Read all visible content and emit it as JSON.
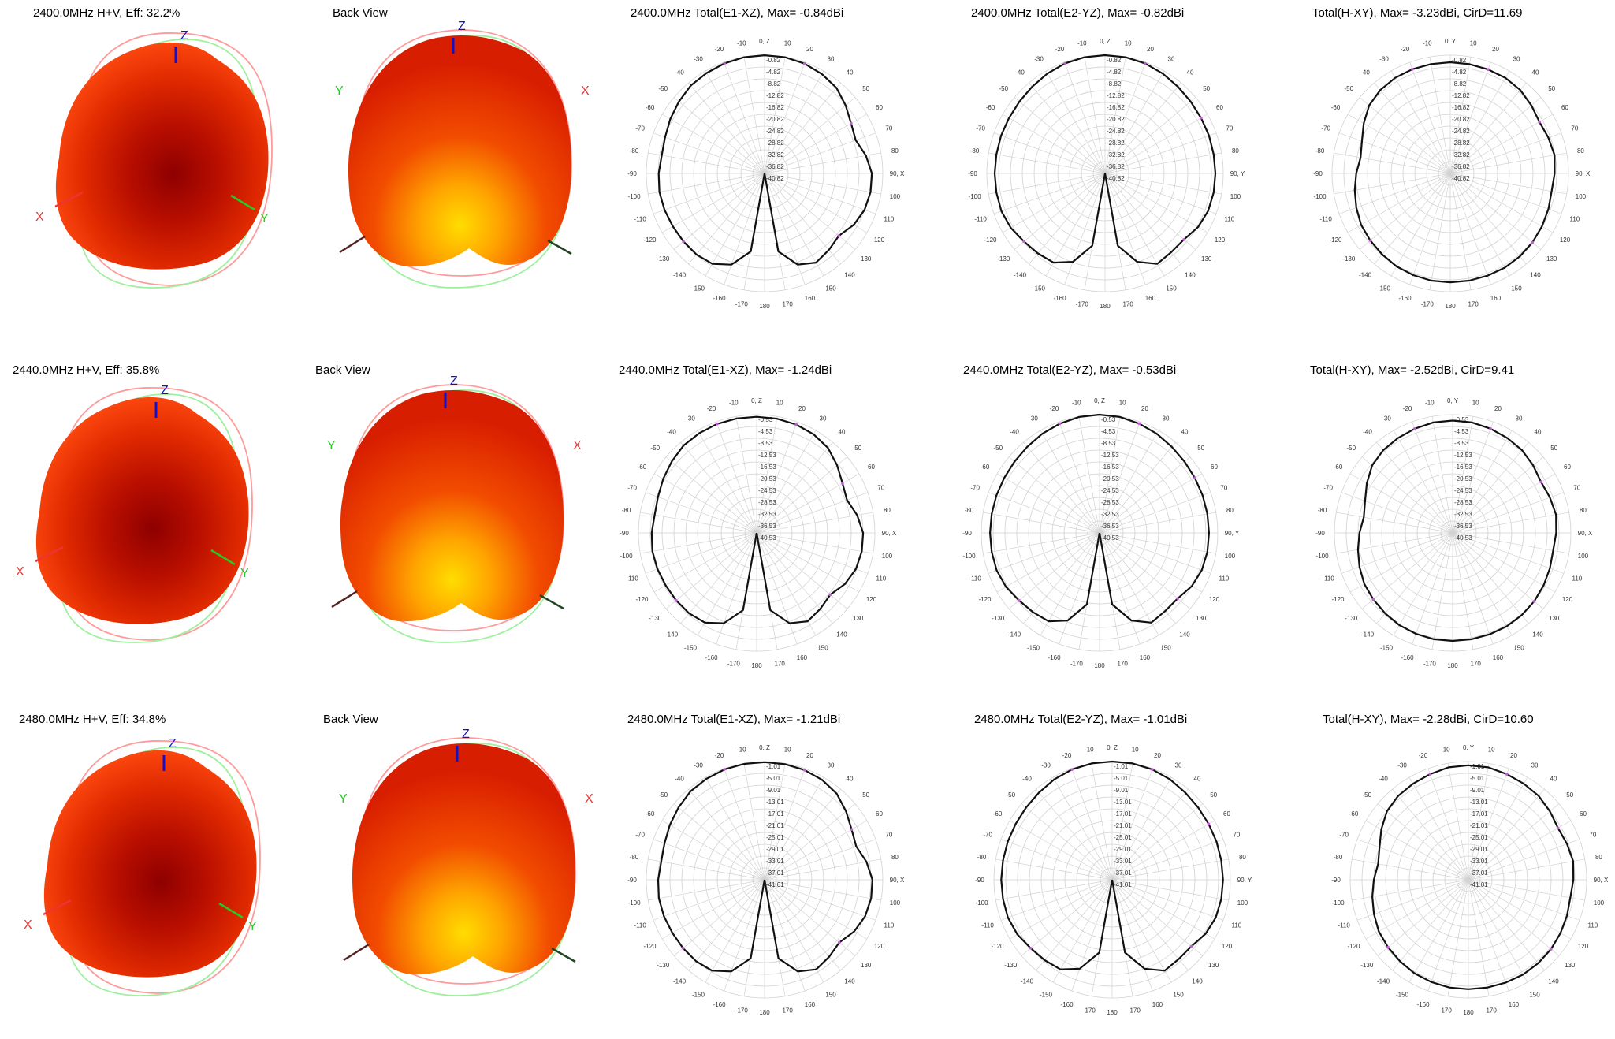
{
  "rows": [
    {
      "view3d": {
        "title": "2400.0MHz H+V, Eff: 32.2%",
        "back_label": "Back View",
        "axis_labels": {
          "x": "X",
          "y": "Y",
          "z": "Z"
        }
      },
      "polars": [
        {
          "title": "2400.0MHz Total(E1-XZ), Max= -0.84dBi",
          "axis0": "0, Z",
          "axis90": "90, X",
          "rings": [
            "-0.82",
            "-4.82",
            "-8.82",
            "-12.82",
            "-16.82",
            "-20.82",
            "-24.82",
            "-28.82",
            "-32.82",
            "-36.82",
            "-40.82"
          ]
        },
        {
          "title": "2400.0MHz Total(E2-YZ), Max= -0.82dBi",
          "axis0": "0, Z",
          "axis90": "90, Y",
          "rings": [
            "-0.82",
            "-4.82",
            "-8.82",
            "-12.82",
            "-16.82",
            "-20.82",
            "-24.82",
            "-28.82",
            "-32.82",
            "-36.82",
            "-40.82"
          ]
        },
        {
          "title": "Total(H-XY), Max= -3.23dBi, CirD=11.69",
          "axis0": "0, Y",
          "axis90": "90, X",
          "rings": [
            "-0.82",
            "-4.82",
            "-8.82",
            "-12.82",
            "-16.82",
            "-20.82",
            "-24.82",
            "-28.82",
            "-32.82",
            "-36.82",
            "-40.82"
          ]
        }
      ]
    },
    {
      "view3d": {
        "title": "2440.0MHz H+V, Eff: 35.8%",
        "back_label": "Back View",
        "axis_labels": {
          "x": "X",
          "y": "Y",
          "z": "Z"
        }
      },
      "polars": [
        {
          "title": "2440.0MHz Total(E1-XZ), Max= -1.24dBi",
          "axis0": "0, Z",
          "axis90": "90, X",
          "rings": [
            "-0.53",
            "-4.53",
            "-8.53",
            "-12.53",
            "-16.53",
            "-20.53",
            "-24.53",
            "-28.53",
            "-32.53",
            "-36.53",
            "-40.53"
          ]
        },
        {
          "title": "2440.0MHz Total(E2-YZ), Max= -0.53dBi",
          "axis0": "0, Z",
          "axis90": "90, Y",
          "rings": [
            "-0.53",
            "-4.53",
            "-8.53",
            "-12.53",
            "-16.53",
            "-20.53",
            "-24.53",
            "-28.53",
            "-32.53",
            "-36.53",
            "-40.53"
          ]
        },
        {
          "title": "Total(H-XY), Max= -2.52dBi, CirD=9.41",
          "axis0": "0, Y",
          "axis90": "90, X",
          "rings": [
            "-0.53",
            "-4.53",
            "-8.53",
            "-12.53",
            "-16.53",
            "-20.53",
            "-24.53",
            "-28.53",
            "-32.53",
            "-36.53",
            "-40.53"
          ]
        }
      ]
    },
    {
      "view3d": {
        "title": "2480.0MHz H+V, Eff: 34.8%",
        "back_label": "Back View",
        "axis_labels": {
          "x": "X",
          "y": "Y",
          "z": "Z"
        }
      },
      "polars": [
        {
          "title": "2480.0MHz Total(E1-XZ), Max= -1.21dBi",
          "axis0": "0, Z",
          "axis90": "90, X",
          "rings": [
            "-1.01",
            "-5.01",
            "-9.01",
            "-13.01",
            "-17.01",
            "-21.01",
            "-25.01",
            "-29.01",
            "-33.01",
            "-37.01",
            "-41.01"
          ]
        },
        {
          "title": "2480.0MHz Total(E2-YZ), Max= -1.01dBi",
          "axis0": "0, Z",
          "axis90": "90, Y",
          "rings": [
            "-1.01",
            "-5.01",
            "-9.01",
            "-13.01",
            "-17.01",
            "-21.01",
            "-25.01",
            "-29.01",
            "-33.01",
            "-37.01",
            "-41.01"
          ]
        },
        {
          "title": "Total(H-XY), Max= -2.28dBi, CirD=10.60",
          "axis0": "0, Y",
          "axis90": "90, X",
          "rings": [
            "-1.01",
            "-5.01",
            "-9.01",
            "-13.01",
            "-17.01",
            "-21.01",
            "-25.01",
            "-29.01",
            "-33.01",
            "-37.01",
            "-41.01"
          ]
        }
      ]
    }
  ],
  "colors": {
    "pattern_line": "#111111",
    "grid": "#d2d2d2",
    "marker": "#c45ad8",
    "heat_dark": "#8e0000",
    "heat_mid": "#e02a00",
    "heat_light": "#ffdd00",
    "z_axis": "#1111cc",
    "x_axis": "#ee3333",
    "y_axis": "#22cc22"
  },
  "chart_data": {
    "type": "polar",
    "angles_deg": [
      -180,
      -170,
      -160,
      -150,
      -140,
      -130,
      -120,
      -110,
      -100,
      -90,
      -80,
      -70,
      -60,
      -50,
      -40,
      -30,
      -20,
      -10,
      0,
      10,
      20,
      30,
      40,
      50,
      60,
      70,
      80,
      90,
      100,
      110,
      120,
      130,
      140,
      150,
      160,
      170,
      180
    ],
    "angle_tick_labels": [
      "180",
      "-170",
      "-160",
      "-150",
      "-140",
      "-130",
      "-120",
      "-110",
      "-100",
      "-90",
      "-80",
      "-70",
      "-60",
      "-50",
      "-40",
      "-30",
      "-20",
      "-10",
      "0",
      "10",
      "20",
      "30",
      "40",
      "50",
      "60",
      "70",
      "80",
      "90",
      "100",
      "110",
      "120",
      "130",
      "140",
      "150",
      "160",
      "170"
    ],
    "charts": [
      {
        "title": "2400.0MHz Total(E1-XZ), Max= -0.84dBi",
        "rmax": -0.82,
        "rmin": -40.82,
        "values": [
          -40.8,
          -14,
          -8,
          -5.5,
          -5,
          -5,
          -5,
          -4.8,
          -4.7,
          -5,
          -5.5,
          -5,
          -4,
          -3,
          -2,
          -1.6,
          -1.2,
          -0.9,
          -0.84,
          -0.9,
          -1.3,
          -2,
          -3,
          -5,
          -7,
          -8,
          -6,
          -4.5,
          -4.4,
          -4.8,
          -6,
          -8,
          -7,
          -6,
          -8,
          -14,
          -40.8
        ]
      },
      {
        "title": "2400.0MHz Total(E2-YZ), Max= -0.82dBi",
        "rmax": -0.82,
        "rmin": -40.82,
        "values": [
          -40.8,
          -16,
          -9,
          -6,
          -5.5,
          -5,
          -4,
          -3.5,
          -3.5,
          -3.5,
          -3.5,
          -3.4,
          -3.3,
          -3,
          -2.5,
          -1.8,
          -1.2,
          -0.9,
          -0.82,
          -0.9,
          -1.2,
          -1.8,
          -2.5,
          -3,
          -3.3,
          -3.4,
          -3.5,
          -3.5,
          -3.5,
          -3.7,
          -4.5,
          -6,
          -6,
          -5.5,
          -9,
          -16,
          -40.8
        ]
      },
      {
        "title": "Total(H-XY), Max= -3.23dBi, CirD=11.69",
        "rmax": -0.82,
        "rmin": -40.82,
        "values": [
          -4,
          -4,
          -4.2,
          -4.5,
          -5,
          -5.5,
          -6,
          -7,
          -8,
          -9,
          -10,
          -9,
          -7,
          -5,
          -4,
          -3.5,
          -3.3,
          -3.25,
          -3.23,
          -3.3,
          -3.4,
          -3.5,
          -4,
          -5,
          -6,
          -5.5,
          -5,
          -5.5,
          -6,
          -5.5,
          -5,
          -4.5,
          -4.2,
          -4,
          -4,
          -4,
          -4
        ]
      },
      {
        "title": "2440.0MHz Total(E1-XZ), Max= -1.24dBi",
        "rmax": -0.53,
        "rmin": -40.53,
        "values": [
          -40.5,
          -14,
          -8,
          -5.5,
          -5,
          -5,
          -5,
          -4.8,
          -4.7,
          -5,
          -5.5,
          -5,
          -4,
          -3,
          -2,
          -1.6,
          -1.3,
          -1.24,
          -1.24,
          -1.3,
          -1.5,
          -2,
          -3,
          -5,
          -7,
          -8,
          -6,
          -4.5,
          -4.4,
          -4.8,
          -6,
          -8,
          -7,
          -6,
          -8,
          -14,
          -40.5
        ]
      },
      {
        "title": "2440.0MHz Total(E2-YZ), Max= -0.53dBi",
        "rmax": -0.53,
        "rmin": -40.53,
        "values": [
          -40.5,
          -16,
          -9,
          -6,
          -5.5,
          -5,
          -4,
          -3.5,
          -3.5,
          -3.5,
          -3.5,
          -3.4,
          -3.3,
          -3,
          -2.5,
          -1.8,
          -1.2,
          -0.7,
          -0.53,
          -0.7,
          -1.2,
          -1.8,
          -2.5,
          -3,
          -3.3,
          -3.4,
          -3.5,
          -3.5,
          -3.5,
          -3.7,
          -4.5,
          -6,
          -6,
          -5.5,
          -9,
          -16,
          -40.5
        ]
      },
      {
        "title": "Total(H-XY), Max= -2.52dBi, CirD=9.41",
        "rmax": -0.53,
        "rmin": -40.53,
        "values": [
          -4,
          -4,
          -4.2,
          -4.5,
          -5,
          -5.5,
          -6,
          -7,
          -8,
          -9,
          -10,
          -9,
          -7,
          -5,
          -4,
          -3.5,
          -3,
          -2.6,
          -2.52,
          -2.6,
          -3,
          -3.5,
          -4,
          -5,
          -6,
          -5.5,
          -5,
          -5.5,
          -6,
          -5.5,
          -5,
          -4.5,
          -4.2,
          -4,
          -4,
          -4,
          -4
        ]
      },
      {
        "title": "2480.0MHz Total(E1-XZ), Max= -1.21dBi",
        "rmax": -1.01,
        "rmin": -41.01,
        "values": [
          -41,
          -14,
          -8,
          -5.5,
          -5,
          -5,
          -5,
          -4.8,
          -4.7,
          -5,
          -5.5,
          -5,
          -4,
          -3,
          -2,
          -1.6,
          -1.3,
          -1.21,
          -1.21,
          -1.3,
          -1.5,
          -2,
          -3,
          -5,
          -7,
          -8,
          -6,
          -4.5,
          -4.4,
          -4.8,
          -6,
          -8,
          -7,
          -6,
          -8,
          -14,
          -41
        ]
      },
      {
        "title": "2480.0MHz Total(E2-YZ), Max= -1.01dBi",
        "rmax": -1.01,
        "rmin": -41.01,
        "values": [
          -41,
          -16,
          -9,
          -6,
          -5.5,
          -5,
          -4,
          -3.5,
          -3.5,
          -3.5,
          -3.5,
          -3.4,
          -3.3,
          -3,
          -2.5,
          -1.8,
          -1.3,
          -1.05,
          -1.01,
          -1.05,
          -1.3,
          -1.8,
          -2.5,
          -3,
          -3.3,
          -3.4,
          -3.5,
          -3.5,
          -3.5,
          -3.7,
          -4.5,
          -6,
          -6,
          -5.5,
          -9,
          -16,
          -41
        ]
      },
      {
        "title": "Total(H-XY), Max= -2.28dBi, CirD=10.60",
        "rmax": -1.01,
        "rmin": -41.01,
        "values": [
          -4,
          -4,
          -4.2,
          -4.5,
          -5,
          -5.5,
          -6,
          -7,
          -8,
          -9,
          -10,
          -9,
          -7,
          -5,
          -4,
          -3.5,
          -3,
          -2.4,
          -2.28,
          -2.4,
          -3,
          -3.5,
          -4,
          -5,
          -6,
          -5.5,
          -5,
          -5.5,
          -6,
          -5.5,
          -5,
          -4.5,
          -4.2,
          -4,
          -4,
          -4,
          -4
        ]
      }
    ]
  }
}
